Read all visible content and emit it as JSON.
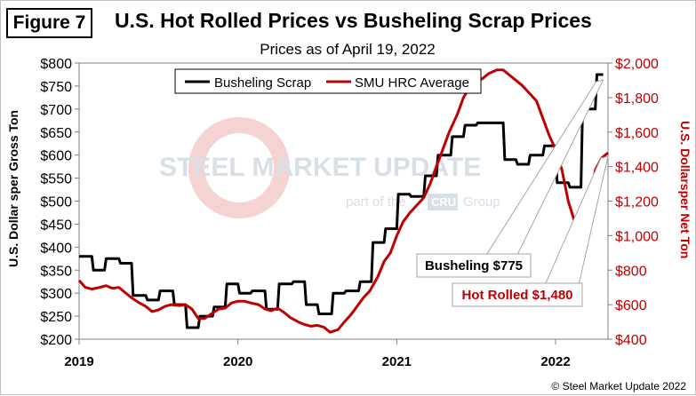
{
  "figure_label": "Figure 7",
  "chart_data": {
    "type": "line",
    "title": "U.S. Hot Rolled Prices vs Busheling Scrap Prices",
    "subtitle": "Prices as of April 19, 2022",
    "ylabel_left": "U.S. Dollar sper Gross Ton",
    "ylabel_right": "U.S. Dollarsper Net Ton",
    "ylim_left": [
      200,
      800
    ],
    "ylim_right": [
      400,
      2000
    ],
    "y_ticks_left": [
      "$200",
      "$250",
      "$300",
      "$350",
      "$400",
      "$450",
      "$500",
      "$550",
      "$600",
      "$650",
      "$700",
      "$750",
      "$800"
    ],
    "y_ticks_right": [
      "$400",
      "$600",
      "$800",
      "$1,000",
      "$1,200",
      "$1,400",
      "$1,600",
      "$1,800",
      "$2,000"
    ],
    "x_ticks": [
      "2019",
      "2020",
      "2021",
      "2022"
    ],
    "xlim": [
      2019.0,
      2022.33
    ],
    "legend": [
      "Busheling Scrap",
      "SMU HRC Average"
    ],
    "colors": {
      "scrap": "#000000",
      "hrc": "#c00000"
    },
    "series": [
      {
        "name": "Busheling Scrap",
        "axis": "left",
        "x": [
          2019.0,
          2019.08,
          2019.09,
          2019.16,
          2019.17,
          2019.25,
          2019.26,
          2019.33,
          2019.34,
          2019.42,
          2019.43,
          2019.5,
          2019.51,
          2019.59,
          2019.6,
          2019.67,
          2019.68,
          2019.75,
          2019.76,
          2019.84,
          2019.85,
          2019.92,
          2019.93,
          2020.0,
          2020.01,
          2020.08,
          2020.09,
          2020.17,
          2020.18,
          2020.25,
          2020.26,
          2020.34,
          2020.35,
          2020.42,
          2020.43,
          2020.5,
          2020.51,
          2020.59,
          2020.6,
          2020.67,
          2020.68,
          2020.76,
          2020.77,
          2020.84,
          2020.85,
          2020.92,
          2020.93,
          2021.0,
          2021.01,
          2021.08,
          2021.09,
          2021.17,
          2021.18,
          2021.25,
          2021.26,
          2021.34,
          2021.35,
          2021.42,
          2021.43,
          2021.5,
          2021.51,
          2021.67,
          2021.68,
          2021.75,
          2021.76,
          2021.83,
          2021.84,
          2021.92,
          2021.93,
          2022.0,
          2022.01,
          2022.08,
          2022.09,
          2022.16,
          2022.17,
          2022.25,
          2022.26,
          2022.3
        ],
        "values": [
          380,
          380,
          350,
          350,
          375,
          375,
          365,
          365,
          295,
          295,
          285,
          285,
          305,
          305,
          275,
          275,
          225,
          225,
          250,
          250,
          270,
          270,
          320,
          320,
          300,
          300,
          305,
          305,
          265,
          265,
          320,
          320,
          325,
          325,
          275,
          275,
          255,
          255,
          300,
          300,
          305,
          305,
          325,
          325,
          410,
          410,
          440,
          440,
          515,
          515,
          510,
          510,
          555,
          555,
          600,
          600,
          640,
          640,
          665,
          665,
          670,
          670,
          590,
          590,
          580,
          580,
          600,
          600,
          620,
          620,
          540,
          540,
          530,
          530,
          700,
          700,
          775,
          775
        ]
      },
      {
        "name": "SMU HRC Average",
        "axis": "right",
        "x": [
          2019.0,
          2019.04,
          2019.08,
          2019.13,
          2019.17,
          2019.21,
          2019.25,
          2019.29,
          2019.33,
          2019.38,
          2019.42,
          2019.46,
          2019.5,
          2019.54,
          2019.58,
          2019.63,
          2019.67,
          2019.71,
          2019.75,
          2019.79,
          2019.83,
          2019.88,
          2019.92,
          2019.96,
          2020.0,
          2020.04,
          2020.08,
          2020.13,
          2020.17,
          2020.21,
          2020.25,
          2020.29,
          2020.33,
          2020.38,
          2020.42,
          2020.46,
          2020.5,
          2020.54,
          2020.58,
          2020.63,
          2020.67,
          2020.71,
          2020.75,
          2020.79,
          2020.83,
          2020.88,
          2020.92,
          2020.96,
          2021.0,
          2021.04,
          2021.08,
          2021.13,
          2021.17,
          2021.21,
          2021.25,
          2021.29,
          2021.33,
          2021.38,
          2021.42,
          2021.46,
          2021.5,
          2021.54,
          2021.58,
          2021.63,
          2021.67,
          2021.71,
          2021.75,
          2021.79,
          2021.83,
          2021.88,
          2021.92,
          2021.96,
          2022.0,
          2022.04,
          2022.08,
          2022.13,
          2022.17,
          2022.21,
          2022.25,
          2022.29,
          2022.33
        ],
        "values": [
          740,
          700,
          690,
          700,
          710,
          695,
          700,
          670,
          640,
          610,
          590,
          560,
          570,
          590,
          600,
          595,
          600,
          575,
          520,
          520,
          545,
          575,
          580,
          610,
          620,
          620,
          610,
          600,
          575,
          565,
          580,
          555,
          525,
          500,
          485,
          475,
          480,
          470,
          440,
          455,
          500,
          540,
          590,
          640,
          680,
          760,
          850,
          900,
          1000,
          1080,
          1130,
          1180,
          1220,
          1300,
          1400,
          1500,
          1600,
          1700,
          1800,
          1860,
          1890,
          1910,
          1940,
          1960,
          1960,
          1930,
          1900,
          1870,
          1830,
          1780,
          1680,
          1580,
          1500,
          1380,
          1200,
          1050,
          1010,
          1150,
          1380,
          1450,
          1480
        ]
      }
    ],
    "annotations": [
      "Busheling $775",
      "Hot Rolled $1,480"
    ]
  },
  "watermark": {
    "brand": "STEEL MARKET UPDATE",
    "tagline_pre": "part of the",
    "tagline_badge": "CRU",
    "tagline_post": "Group"
  },
  "copyright": "© Steel Market Update 2022"
}
